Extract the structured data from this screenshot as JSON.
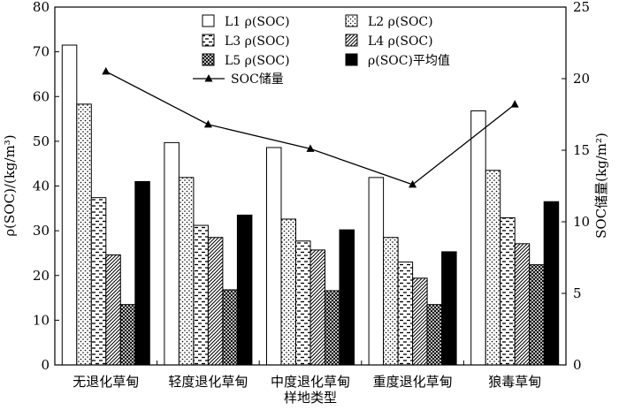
{
  "chart_data": {
    "type": "bar",
    "xlabel": "样地类型",
    "ylabel_left": "ρ(SOC)/(kg/m³)",
    "ylabel_right": "SOC储量(kg/m²)",
    "ylim_left": [
      0,
      80
    ],
    "yticks_left": [
      0,
      10,
      20,
      30,
      40,
      50,
      60,
      70,
      80
    ],
    "ylim_right": [
      0,
      25
    ],
    "yticks_right": [
      0,
      5,
      10,
      15,
      20,
      25
    ],
    "grid": false,
    "legend_position": "top-center",
    "categories": [
      "无退化草甸",
      "轻度退化草甸",
      "中度退化草甸",
      "重度退化草甸",
      "狼毒草甸"
    ],
    "series": [
      {
        "name": "L1 ρ(SOC)",
        "pattern": "white",
        "values": [
          71.5,
          49.7,
          48.6,
          41.9,
          56.8
        ]
      },
      {
        "name": "L2 ρ(SOC)",
        "pattern": "dots",
        "values": [
          58.3,
          41.9,
          32.6,
          28.5,
          43.5
        ]
      },
      {
        "name": "L3 ρ(SOC)",
        "pattern": "dashes",
        "values": [
          37.4,
          31.2,
          27.7,
          23.0,
          32.9
        ]
      },
      {
        "name": "L4 ρ(SOC)",
        "pattern": "diagonal",
        "values": [
          24.6,
          28.5,
          25.7,
          19.4,
          27.1
        ]
      },
      {
        "name": "L5 ρ(SOC)",
        "pattern": "crosshatch",
        "values": [
          13.5,
          16.8,
          16.6,
          13.5,
          22.4
        ]
      },
      {
        "name": "ρ(SOC)平均值",
        "pattern": "black",
        "values": [
          41.0,
          33.5,
          30.2,
          25.3,
          36.5
        ]
      }
    ],
    "line_series": {
      "name": "SOC储量",
      "axis": "right",
      "marker": "triangle",
      "values": [
        20.5,
        16.8,
        15.1,
        12.6,
        18.2
      ]
    }
  }
}
